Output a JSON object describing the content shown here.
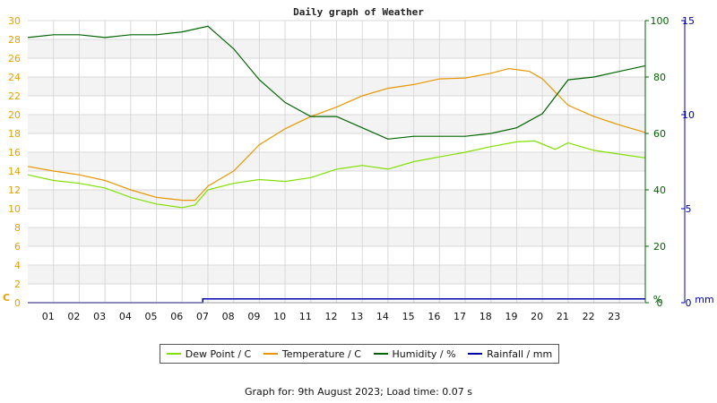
{
  "title": "Daily graph of Weather",
  "footer": "Graph for: 9th August 2023; Load time: 0.07 s",
  "colors": {
    "temp_axis": "#e8a000",
    "humidity_axis": "#006400",
    "rain_axis": "#0000aa",
    "band": "#f3f3f3",
    "grid": "#d8d8d8"
  },
  "chart_data": {
    "type": "line",
    "title": "Daily graph of Weather",
    "x_ticks": [
      "01",
      "02",
      "03",
      "04",
      "05",
      "06",
      "07",
      "08",
      "09",
      "10",
      "11",
      "12",
      "13",
      "14",
      "15",
      "16",
      "17",
      "18",
      "19",
      "20",
      "21",
      "22",
      "23"
    ],
    "x_range_hours": [
      0,
      24
    ],
    "axes": {
      "left": {
        "unit": "C",
        "range": [
          0,
          30
        ],
        "ticks": [
          0,
          2,
          4,
          6,
          8,
          10,
          12,
          14,
          16,
          18,
          20,
          22,
          24,
          26,
          28,
          30
        ]
      },
      "right1": {
        "unit": "%",
        "range": [
          0,
          100
        ],
        "ticks": [
          0,
          20,
          40,
          60,
          80,
          100
        ]
      },
      "right2": {
        "unit": "mm",
        "range": [
          0,
          15
        ],
        "ticks": [
          0,
          5,
          10,
          15
        ]
      }
    },
    "grid": true,
    "legend_position": "bottom",
    "series": [
      {
        "name": "Dew Point / C",
        "color": "#7fe000",
        "axis": "left",
        "points": [
          [
            0,
            13.6
          ],
          [
            1,
            13.0
          ],
          [
            2,
            12.7
          ],
          [
            3,
            12.2
          ],
          [
            4,
            11.2
          ],
          [
            5,
            10.5
          ],
          [
            6,
            10.1
          ],
          [
            6.5,
            10.4
          ],
          [
            7,
            12.0
          ],
          [
            8,
            12.7
          ],
          [
            9,
            13.1
          ],
          [
            10,
            12.9
          ],
          [
            11,
            13.3
          ],
          [
            12,
            14.2
          ],
          [
            13,
            14.6
          ],
          [
            14,
            14.2
          ],
          [
            15,
            15.0
          ],
          [
            16,
            15.5
          ],
          [
            17,
            16.0
          ],
          [
            18,
            16.6
          ],
          [
            19,
            17.1
          ],
          [
            19.7,
            17.2
          ],
          [
            20.5,
            16.3
          ],
          [
            21,
            17.0
          ],
          [
            22,
            16.2
          ],
          [
            23,
            15.8
          ],
          [
            24,
            15.4
          ]
        ]
      },
      {
        "name": "Temperature / C",
        "color": "#e89600",
        "axis": "left",
        "points": [
          [
            0,
            14.5
          ],
          [
            1,
            14.0
          ],
          [
            2,
            13.6
          ],
          [
            3,
            13.0
          ],
          [
            4,
            12.0
          ],
          [
            5,
            11.2
          ],
          [
            6,
            10.9
          ],
          [
            6.5,
            10.9
          ],
          [
            7,
            12.4
          ],
          [
            8,
            14.0
          ],
          [
            9,
            16.8
          ],
          [
            10,
            18.5
          ],
          [
            11,
            19.8
          ],
          [
            12,
            20.8
          ],
          [
            13,
            22.0
          ],
          [
            14,
            22.8
          ],
          [
            15,
            23.2
          ],
          [
            16,
            23.8
          ],
          [
            17,
            23.9
          ],
          [
            18,
            24.4
          ],
          [
            18.7,
            24.9
          ],
          [
            19.5,
            24.6
          ],
          [
            20,
            23.8
          ],
          [
            21,
            21.0
          ],
          [
            22,
            19.8
          ],
          [
            23,
            18.9
          ],
          [
            24,
            18.1
          ]
        ]
      },
      {
        "name": "Humidity / %",
        "color": "#006400",
        "axis": "right1",
        "points": [
          [
            0,
            94
          ],
          [
            1,
            95
          ],
          [
            2,
            95
          ],
          [
            3,
            94
          ],
          [
            4,
            95
          ],
          [
            5,
            95
          ],
          [
            6,
            96
          ],
          [
            7,
            98
          ],
          [
            8,
            90
          ],
          [
            9,
            79
          ],
          [
            10,
            71
          ],
          [
            11,
            66
          ],
          [
            12,
            66
          ],
          [
            13,
            62
          ],
          [
            14,
            58
          ],
          [
            15,
            59
          ],
          [
            16,
            59
          ],
          [
            17,
            59
          ],
          [
            18,
            60
          ],
          [
            19,
            62
          ],
          [
            20,
            67
          ],
          [
            21,
            79
          ],
          [
            22,
            80
          ],
          [
            23,
            82
          ],
          [
            24,
            84
          ]
        ]
      },
      {
        "name": "Rainfall / mm",
        "color": "#0000aa",
        "axis": "right2",
        "points": [
          [
            0,
            0
          ],
          [
            6.8,
            0
          ],
          [
            6.8,
            0.2
          ],
          [
            24,
            0.2
          ]
        ]
      }
    ]
  }
}
